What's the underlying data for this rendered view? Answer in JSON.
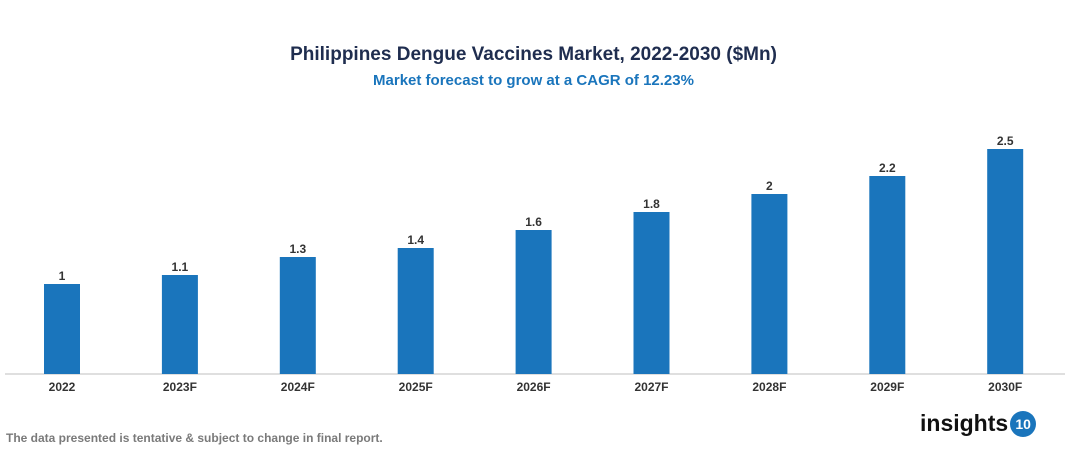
{
  "chart_data": {
    "type": "bar",
    "title": "Philippines Dengue Vaccines Market, 2022-2030 ($Mn)",
    "subtitle": "Market forecast to grow at a CAGR of 12.23%",
    "categories": [
      "2022",
      "2023F",
      "2024F",
      "2025F",
      "2026F",
      "2027F",
      "2028F",
      "2029F",
      "2030F"
    ],
    "values": [
      1,
      1.1,
      1.3,
      1.4,
      1.6,
      1.8,
      2,
      2.2,
      2.5
    ],
    "ylim": [
      0,
      2.5
    ],
    "grid": false,
    "bar_color": "#1a75bc"
  },
  "footer": {
    "note": "The data presented is tentative & subject to change in final report."
  },
  "logo": {
    "text": "insights",
    "badge": "10"
  }
}
